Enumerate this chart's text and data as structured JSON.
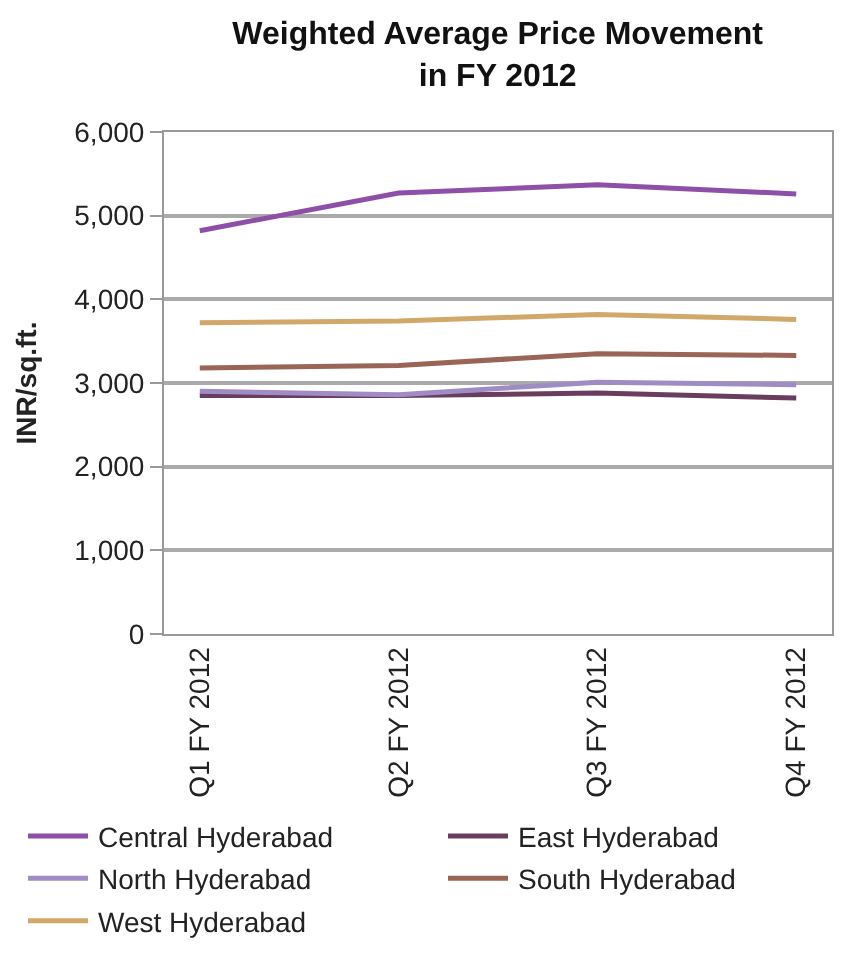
{
  "chart_data": {
    "type": "line",
    "title": "Weighted Average Price Movement in FY 2012",
    "ylabel": "INR/sq.ft.",
    "categories": [
      "Q1 FY 2012",
      "Q2 FY 2012",
      "Q3 FY 2012",
      "Q4 FY 2012"
    ],
    "series": [
      {
        "name": "Central Hyderabad",
        "color": "#8e4fa8",
        "values": [
          4820,
          5270,
          5370,
          5260
        ]
      },
      {
        "name": "East Hyderabad",
        "color": "#6a3d5f",
        "values": [
          2850,
          2850,
          2880,
          2820
        ]
      },
      {
        "name": "North Hyderabad",
        "color": "#a08cc4",
        "values": [
          2900,
          2860,
          3010,
          2980
        ]
      },
      {
        "name": "South Hyderabad",
        "color": "#9a6457",
        "values": [
          3180,
          3210,
          3350,
          3330
        ]
      },
      {
        "name": "West Hyderabad",
        "color": "#d1a86a",
        "values": [
          3720,
          3740,
          3820,
          3760
        ]
      }
    ],
    "ylim": [
      0,
      6000
    ],
    "yticks": [
      {
        "value": 0,
        "label": "0"
      },
      {
        "value": 1000,
        "label": "1,000"
      },
      {
        "value": 2000,
        "label": "2,000"
      },
      {
        "value": 3000,
        "label": "3,000"
      },
      {
        "value": 4000,
        "label": "4,000"
      },
      {
        "value": 5000,
        "label": "5,000"
      },
      {
        "value": 6000,
        "label": "6,000"
      }
    ],
    "grid": "y",
    "legend": "bottom",
    "marker": "none",
    "line_style": "solid"
  }
}
